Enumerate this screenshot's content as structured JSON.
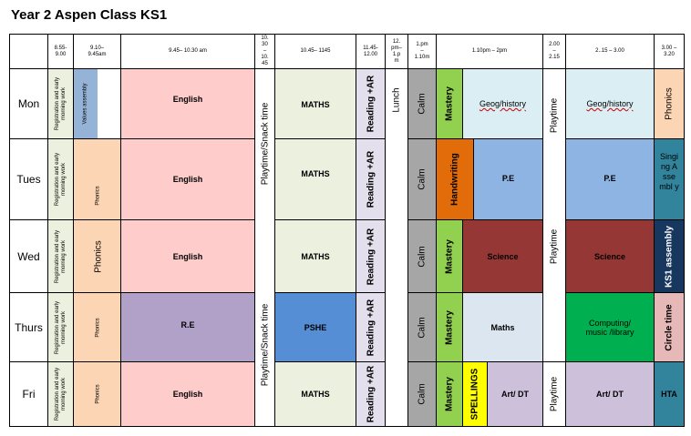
{
  "title": "Year 2 Aspen Class KS1",
  "times": [
    "8.55-\n9.00",
    "9.10–\n9.45am",
    "9.45– 10.30 am",
    "10.\n30\n–\n10.\n45",
    "10.45– 1145",
    "11.45-\n12.00",
    "12.\npm–\n1.p\nm",
    "1.pm\n–\n1.10m",
    "1.10pm – 2pm",
    "2.00\n–\n2.15",
    "2..15 – 3.00",
    "3.00 –\n3.20"
  ],
  "days": [
    "Mon",
    "Tues",
    "Wed",
    "Thurs",
    "Fri"
  ],
  "cells": {
    "registration": "Registration and early morning work",
    "values_assembly": "Values assembly",
    "phonics": "Phonics",
    "english": "English",
    "re": "R.E",
    "playtime_snack": "Playtime/Snack time",
    "maths_caps": "MATHS",
    "pshe": "PSHE",
    "reading_ar": "Reading +AR",
    "lunch": "Lunch",
    "calm": "Calm",
    "mastery": "Mastery",
    "geog_history": "Geog/history",
    "handwriting": "Handwriting",
    "pe": "P.E",
    "science": "Science",
    "maths": "Maths",
    "spellings": "SPELLINGS",
    "art_dt": "Art/ DT",
    "playtime": "Playtime",
    "computing": "Computing/ music /library",
    "singing_assembly": "Singi ng Asse mbl y",
    "ks1_assembly": "KS1 assembly",
    "circle_time": "Circle time",
    "hta": "HTA"
  },
  "colors": {
    "registration": "#ebf1de",
    "phonics": "#fcd5b4",
    "values_assembly": "#95b3d7",
    "english": "#ffcccc",
    "re": "#b1a0c7",
    "maths_block": "#ebf1de",
    "pshe": "#558ed5",
    "reading": "#e4dfec",
    "calm": "#a6a6a6",
    "mastery": "#92d050",
    "geog": "#daeef3",
    "handwriting": "#e26b0a",
    "pe": "#8db4e2",
    "science": "#953735",
    "maths_afternoon": "#dce6f1",
    "spellings": "#ffff00",
    "art": "#ccc0da",
    "computing": "#00b050",
    "teal": "#31849b",
    "navy": "#17375e",
    "circle": "#e6b8b7"
  }
}
